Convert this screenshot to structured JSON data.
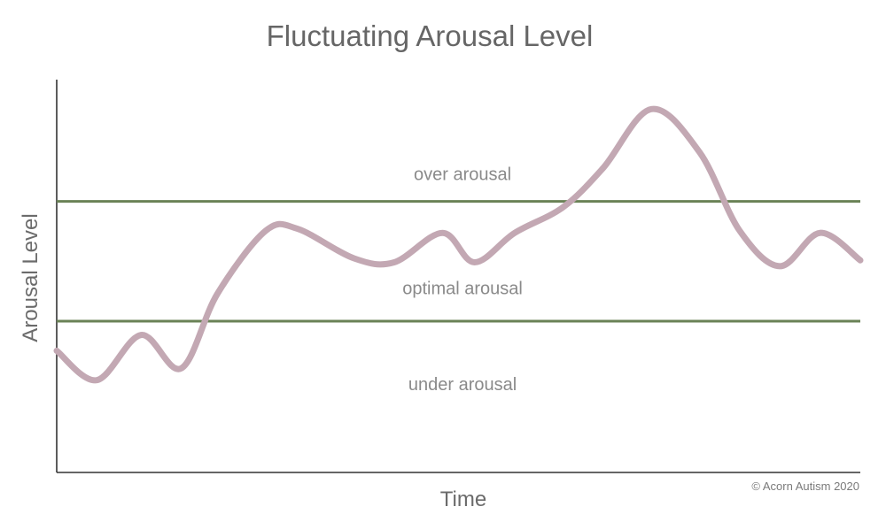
{
  "chart_data": {
    "type": "line",
    "title": "Fluctuating Arousal Level",
    "xlabel": "Time",
    "ylabel": "Arousal Level",
    "xlim": [
      0,
      100
    ],
    "ylim": [
      0,
      100
    ],
    "grid": false,
    "thresholds": [
      {
        "name": "upper",
        "value": 69
      },
      {
        "name": "lower",
        "value": 38.5
      }
    ],
    "zones": [
      {
        "label": "over arousal",
        "x": 50.5,
        "y": 76
      },
      {
        "label": "optimal arousal",
        "x": 50.5,
        "y": 47
      },
      {
        "label": "under arousal",
        "x": 50.5,
        "y": 22.5
      }
    ],
    "series": [
      {
        "x": [
          0,
          5,
          10.5,
          15.5,
          20,
          26,
          30,
          37,
          42,
          48,
          52,
          57,
          63,
          68,
          74,
          80,
          85,
          90,
          95,
          100
        ],
        "values": [
          31,
          23.5,
          35,
          26.5,
          45.5,
          61.5,
          62,
          54.5,
          53.5,
          61,
          53.5,
          61,
          67.5,
          77.5,
          92.5,
          81.5,
          61.5,
          52.5,
          61,
          54
        ]
      }
    ],
    "credit": "© Acorn Autism 2020"
  }
}
